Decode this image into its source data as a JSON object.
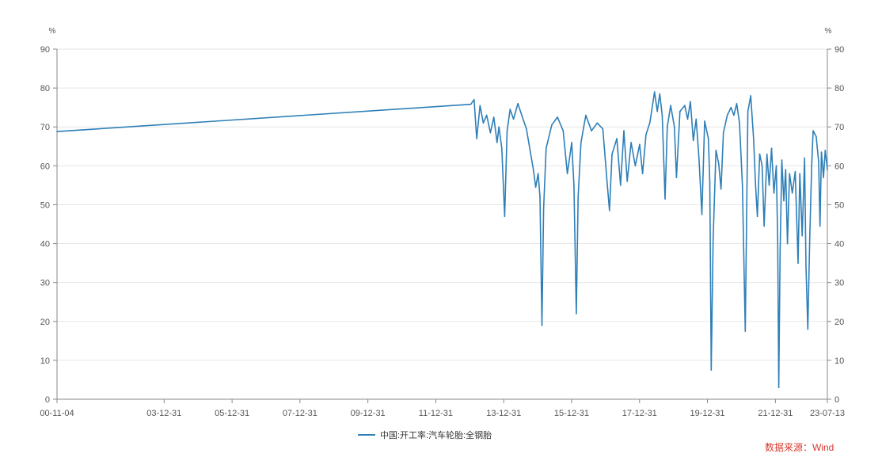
{
  "chart_data": {
    "type": "line",
    "title": "",
    "xlabel": "",
    "ylabel_left": "%",
    "ylabel_right": "%",
    "ylim": [
      0,
      90
    ],
    "yticks": [
      "0",
      "10",
      "20",
      "30",
      "40",
      "50",
      "60",
      "70",
      "80",
      "90"
    ],
    "xlim": [
      "2000-11-04",
      "2023-07-13"
    ],
    "xticks": [
      {
        "date": "2000-11-04",
        "label": "00-11-04"
      },
      {
        "date": "2003-12-31",
        "label": "03-12-31"
      },
      {
        "date": "2005-12-31",
        "label": "05-12-31"
      },
      {
        "date": "2007-12-31",
        "label": "07-12-31"
      },
      {
        "date": "2009-12-31",
        "label": "09-12-31"
      },
      {
        "date": "2011-12-31",
        "label": "11-12-31"
      },
      {
        "date": "2013-12-31",
        "label": "13-12-31"
      },
      {
        "date": "2015-12-31",
        "label": "15-12-31"
      },
      {
        "date": "2017-12-31",
        "label": "17-12-31"
      },
      {
        "date": "2019-12-31",
        "label": "19-12-31"
      },
      {
        "date": "2021-12-31",
        "label": "21-12-31"
      },
      {
        "date": "2023-07-13",
        "label": "23-07-13"
      }
    ],
    "grid": true,
    "legend_position": "bottom-center",
    "series": [
      {
        "name": "中国:开工率:汽车轮胎:全钢胎",
        "color": "#2e7fb8",
        "points": [
          [
            "2000-11-04",
            68.8
          ],
          [
            "2013-01-10",
            75.8
          ],
          [
            "2013-02-15",
            77.0
          ],
          [
            "2013-03-15",
            67.0
          ],
          [
            "2013-04-20",
            75.5
          ],
          [
            "2013-05-25",
            71.0
          ],
          [
            "2013-07-01",
            73.0
          ],
          [
            "2013-08-10",
            68.5
          ],
          [
            "2013-09-15",
            72.5
          ],
          [
            "2013-10-20",
            66.0
          ],
          [
            "2013-11-10",
            70.0
          ],
          [
            "2013-12-10",
            64.5
          ],
          [
            "2014-01-10",
            47.0
          ],
          [
            "2014-02-05",
            69.0
          ],
          [
            "2014-03-10",
            74.5
          ],
          [
            "2014-04-15",
            72.0
          ],
          [
            "2014-06-01",
            76.0
          ],
          [
            "2014-07-20",
            72.5
          ],
          [
            "2014-09-01",
            69.5
          ],
          [
            "2014-10-10",
            64.0
          ],
          [
            "2014-11-15",
            59.0
          ],
          [
            "2014-12-10",
            54.5
          ],
          [
            "2015-01-05",
            58.0
          ],
          [
            "2015-01-25",
            52.0
          ],
          [
            "2015-02-15",
            19.0
          ],
          [
            "2015-03-05",
            49.0
          ],
          [
            "2015-04-01",
            64.5
          ],
          [
            "2015-06-01",
            70.5
          ],
          [
            "2015-08-01",
            72.5
          ],
          [
            "2015-10-01",
            69.0
          ],
          [
            "2015-11-15",
            58.0
          ],
          [
            "2016-01-01",
            66.0
          ],
          [
            "2016-01-25",
            55.0
          ],
          [
            "2016-02-20",
            22.0
          ],
          [
            "2016-03-10",
            52.0
          ],
          [
            "2016-04-10",
            66.0
          ],
          [
            "2016-06-01",
            73.0
          ],
          [
            "2016-08-01",
            69.0
          ],
          [
            "2016-10-01",
            71.0
          ],
          [
            "2016-12-01",
            69.5
          ],
          [
            "2017-01-15",
            56.0
          ],
          [
            "2017-02-10",
            48.5
          ],
          [
            "2017-03-10",
            63.0
          ],
          [
            "2017-05-01",
            67.0
          ],
          [
            "2017-06-10",
            55.0
          ],
          [
            "2017-07-15",
            69.0
          ],
          [
            "2017-08-20",
            56.0
          ],
          [
            "2017-10-01",
            66.0
          ],
          [
            "2017-11-15",
            60.0
          ],
          [
            "2018-01-01",
            65.5
          ],
          [
            "2018-02-01",
            58.0
          ],
          [
            "2018-03-10",
            68.0
          ],
          [
            "2018-04-20",
            71.0
          ],
          [
            "2018-05-15",
            75.0
          ],
          [
            "2018-06-10",
            79.0
          ],
          [
            "2018-07-10",
            74.0
          ],
          [
            "2018-08-05",
            78.5
          ],
          [
            "2018-09-01",
            73.0
          ],
          [
            "2018-10-01",
            51.5
          ],
          [
            "2018-10-25",
            70.0
          ],
          [
            "2018-12-01",
            75.5
          ],
          [
            "2019-01-10",
            70.0
          ],
          [
            "2019-02-01",
            57.0
          ],
          [
            "2019-03-10",
            74.0
          ],
          [
            "2019-05-01",
            75.5
          ],
          [
            "2019-06-01",
            72.0
          ],
          [
            "2019-07-01",
            76.5
          ],
          [
            "2019-08-01",
            66.5
          ],
          [
            "2019-09-01",
            72.0
          ],
          [
            "2019-10-01",
            62.0
          ],
          [
            "2019-11-01",
            47.5
          ],
          [
            "2019-12-01",
            71.5
          ],
          [
            "2020-01-10",
            67.0
          ],
          [
            "2020-01-25",
            56.0
          ],
          [
            "2020-02-10",
            7.5
          ],
          [
            "2020-03-01",
            41.0
          ],
          [
            "2020-04-01",
            64.0
          ],
          [
            "2020-05-01",
            60.5
          ],
          [
            "2020-05-25",
            54.0
          ],
          [
            "2020-06-20",
            68.5
          ],
          [
            "2020-08-01",
            73.0
          ],
          [
            "2020-09-10",
            75.0
          ],
          [
            "2020-10-10",
            73.0
          ],
          [
            "2020-11-10",
            76.0
          ],
          [
            "2020-12-10",
            71.0
          ],
          [
            "2021-01-10",
            55.0
          ],
          [
            "2021-02-10",
            17.5
          ],
          [
            "2021-03-10",
            74.0
          ],
          [
            "2021-04-10",
            78.0
          ],
          [
            "2021-05-10",
            67.0
          ],
          [
            "2021-06-01",
            55.0
          ],
          [
            "2021-06-20",
            47.0
          ],
          [
            "2021-07-15",
            63.0
          ],
          [
            "2021-08-10",
            60.0
          ],
          [
            "2021-09-01",
            44.5
          ],
          [
            "2021-10-01",
            63.0
          ],
          [
            "2021-10-25",
            55.0
          ],
          [
            "2021-11-20",
            64.5
          ],
          [
            "2021-12-15",
            53.0
          ],
          [
            "2022-01-10",
            60.0
          ],
          [
            "2022-01-25",
            40.0
          ],
          [
            "2022-02-05",
            3.0
          ],
          [
            "2022-02-20",
            38.0
          ],
          [
            "2022-03-10",
            61.5
          ],
          [
            "2022-04-01",
            51.0
          ],
          [
            "2022-04-20",
            59.0
          ],
          [
            "2022-05-10",
            40.0
          ],
          [
            "2022-06-01",
            58.0
          ],
          [
            "2022-07-01",
            53.0
          ],
          [
            "2022-08-01",
            58.5
          ],
          [
            "2022-09-01",
            35.0
          ],
          [
            "2022-09-20",
            58.0
          ],
          [
            "2022-10-15",
            42.0
          ],
          [
            "2022-11-10",
            62.0
          ],
          [
            "2022-11-25",
            34.0
          ],
          [
            "2022-12-15",
            18.0
          ],
          [
            "2023-01-05",
            42.0
          ],
          [
            "2023-01-25",
            60.0
          ],
          [
            "2023-02-10",
            69.0
          ],
          [
            "2023-03-15",
            67.5
          ],
          [
            "2023-04-10",
            61.0
          ],
          [
            "2023-04-25",
            44.5
          ],
          [
            "2023-05-10",
            63.5
          ],
          [
            "2023-06-01",
            57.0
          ],
          [
            "2023-06-20",
            64.0
          ],
          [
            "2023-07-13",
            59.0
          ]
        ]
      }
    ]
  },
  "legend": {
    "label": "中国:开工率:汽车轮胎:全钢胎"
  },
  "source": {
    "text": "数据来源：Wind"
  }
}
